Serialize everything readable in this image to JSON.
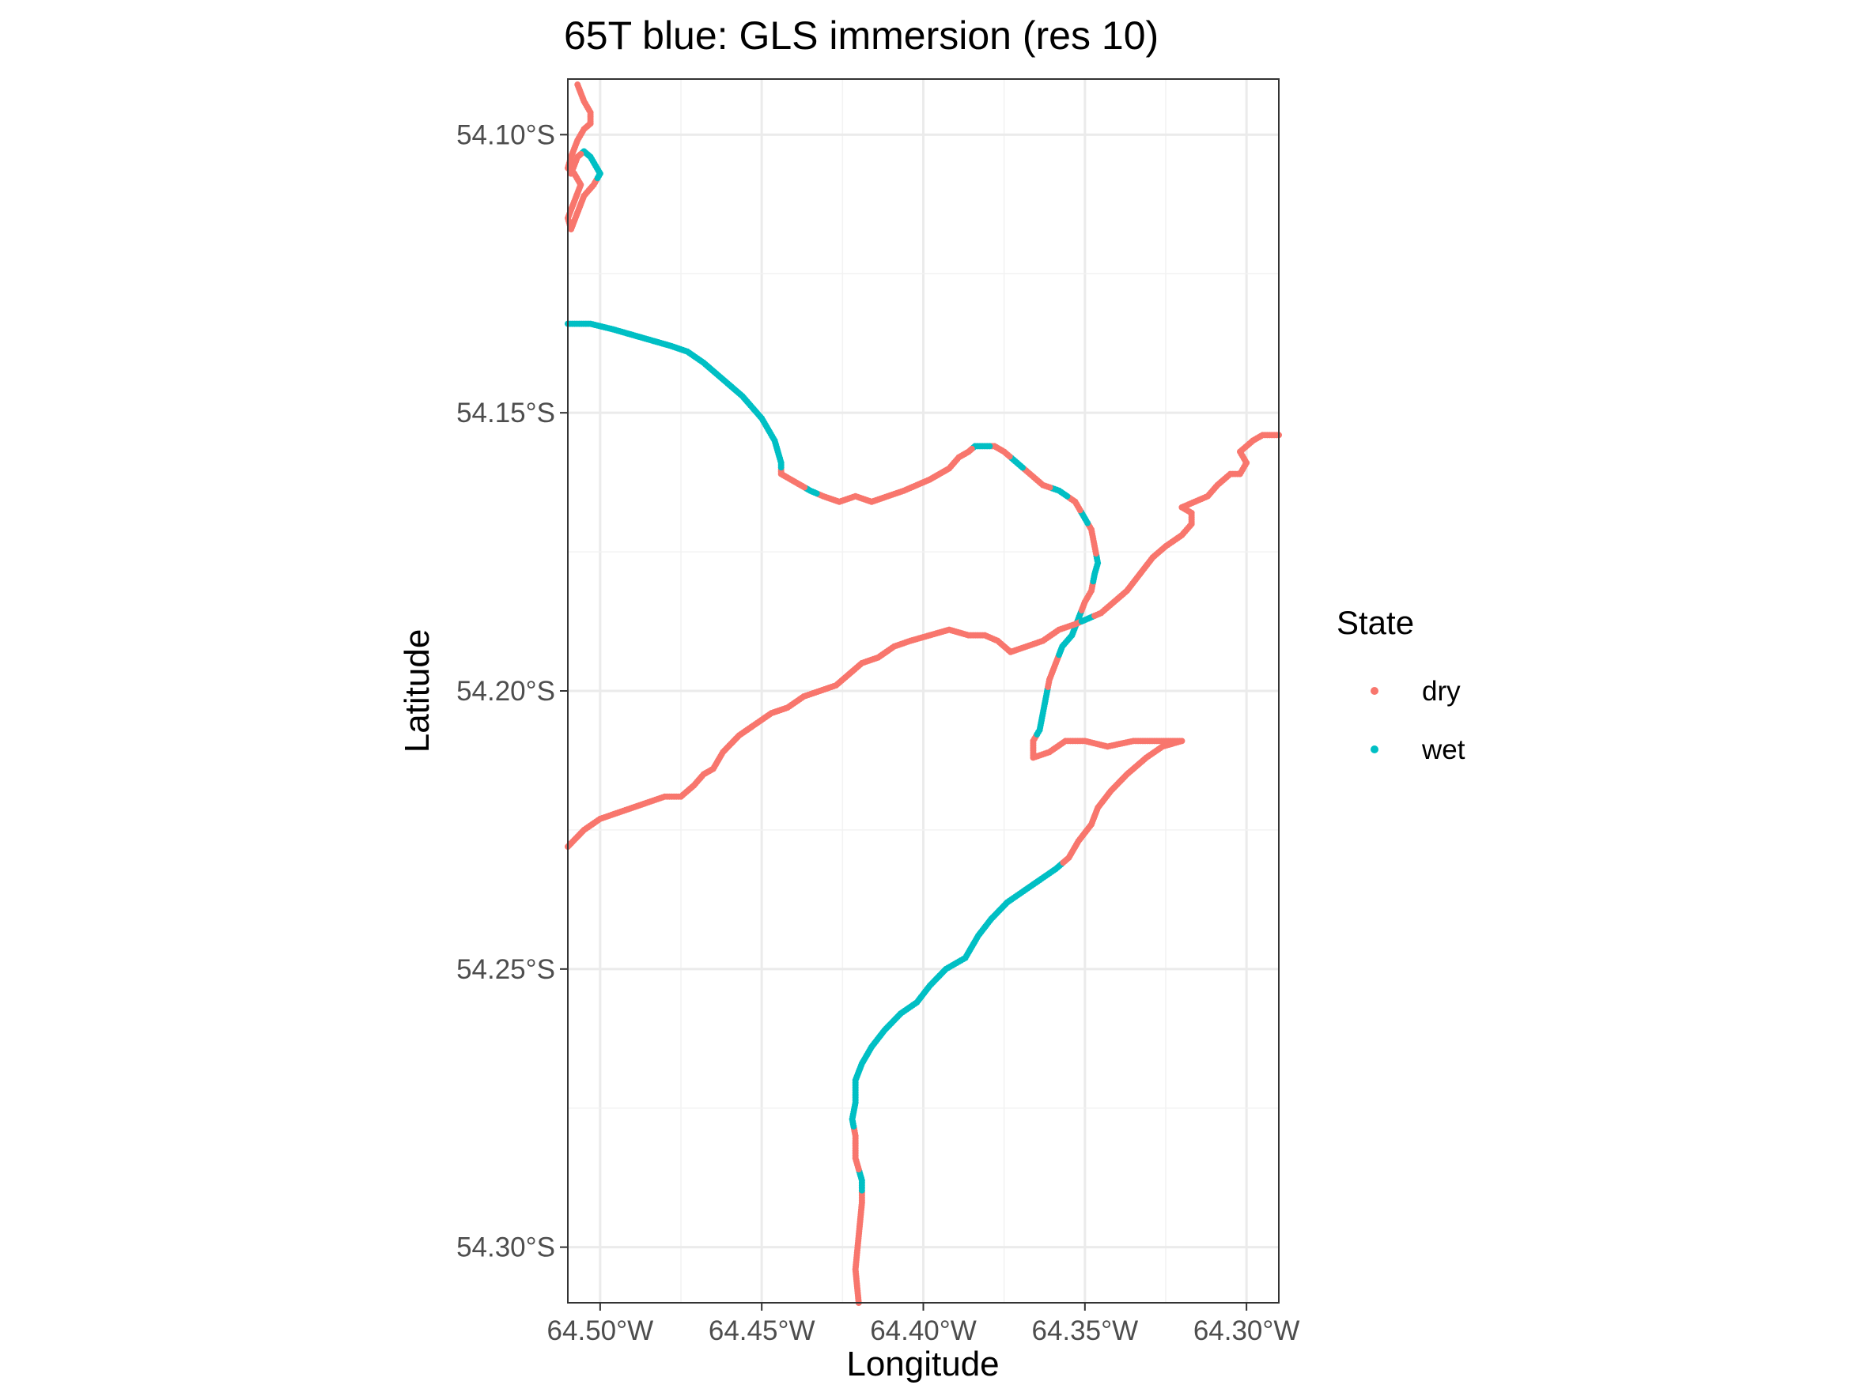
{
  "chart_data": {
    "type": "scatter",
    "title": "65T blue: GLS immersion (res 10)",
    "xlabel": "Longitude",
    "ylabel": "Latitude",
    "x_ticks": [
      -64.5,
      -64.45,
      -64.4,
      -64.35,
      -64.3
    ],
    "x_tick_labels": [
      "64.50°W",
      "64.45°W",
      "64.40°W",
      "64.35°W",
      "64.30°W"
    ],
    "y_ticks": [
      -54.1,
      -54.15,
      -54.2,
      -54.25,
      -54.3
    ],
    "y_tick_labels": [
      "54.10°S",
      "54.15°S",
      "54.20°S",
      "54.25°S",
      "54.30°S"
    ],
    "xlim": [
      -64.51,
      -64.29
    ],
    "ylim": [
      -54.31,
      -54.09
    ],
    "grid": true,
    "legend": {
      "title": "State",
      "position": "right",
      "entries": [
        {
          "label": "dry",
          "color": "#F8766D"
        },
        {
          "label": "wet",
          "color": "#00BFC4"
        }
      ]
    },
    "track": [
      [
        -64.42,
        -54.31,
        "dry"
      ],
      [
        -64.421,
        -54.304,
        "dry"
      ],
      [
        -64.42,
        -54.298,
        "dry"
      ],
      [
        -64.419,
        -54.292,
        "dry"
      ],
      [
        -64.419,
        -54.288,
        "wet"
      ],
      [
        -64.421,
        -54.284,
        "dry"
      ],
      [
        -64.421,
        -54.28,
        "dry"
      ],
      [
        -64.422,
        -54.277,
        "wet"
      ],
      [
        -64.421,
        -54.274,
        "wet"
      ],
      [
        -64.421,
        -54.27,
        "wet"
      ],
      [
        -64.419,
        -54.267,
        "wet"
      ],
      [
        -64.416,
        -54.264,
        "wet"
      ],
      [
        -64.412,
        -54.261,
        "wet"
      ],
      [
        -64.407,
        -54.258,
        "wet"
      ],
      [
        -64.402,
        -54.256,
        "wet"
      ],
      [
        -64.398,
        -54.253,
        "wet"
      ],
      [
        -64.393,
        -54.25,
        "wet"
      ],
      [
        -64.387,
        -54.248,
        "wet"
      ],
      [
        -64.383,
        -54.244,
        "wet"
      ],
      [
        -64.379,
        -54.241,
        "wet"
      ],
      [
        -64.374,
        -54.238,
        "wet"
      ],
      [
        -64.369,
        -54.236,
        "wet"
      ],
      [
        -64.364,
        -54.234,
        "wet"
      ],
      [
        -64.359,
        -54.232,
        "wet"
      ],
      [
        -64.355,
        -54.23,
        "dry"
      ],
      [
        -64.352,
        -54.227,
        "dry"
      ],
      [
        -64.348,
        -54.224,
        "dry"
      ],
      [
        -64.346,
        -54.221,
        "dry"
      ],
      [
        -64.342,
        -54.218,
        "dry"
      ],
      [
        -64.337,
        -54.215,
        "dry"
      ],
      [
        -64.331,
        -54.212,
        "dry"
      ],
      [
        -64.326,
        -54.21,
        "dry"
      ],
      [
        -64.32,
        -54.209,
        "dry"
      ],
      [
        -64.327,
        -54.209,
        "dry"
      ],
      [
        -64.335,
        -54.209,
        "dry"
      ],
      [
        -64.343,
        -54.21,
        "dry"
      ],
      [
        -64.35,
        -54.209,
        "dry"
      ],
      [
        -64.356,
        -54.209,
        "dry"
      ],
      [
        -64.361,
        -54.211,
        "dry"
      ],
      [
        -64.366,
        -54.212,
        "dry"
      ],
      [
        -64.366,
        -54.209,
        "dry"
      ],
      [
        -64.364,
        -54.207,
        "wet"
      ],
      [
        -64.363,
        -54.204,
        "wet"
      ],
      [
        -64.362,
        -54.201,
        "wet"
      ],
      [
        -64.361,
        -54.198,
        "dry"
      ],
      [
        -64.359,
        -54.195,
        "dry"
      ],
      [
        -64.357,
        -54.192,
        "wet"
      ],
      [
        -64.354,
        -54.19,
        "wet"
      ],
      [
        -64.352,
        -54.187,
        "wet"
      ],
      [
        -64.35,
        -54.184,
        "dry"
      ],
      [
        -64.348,
        -54.182,
        "dry"
      ],
      [
        -64.347,
        -54.179,
        "wet"
      ],
      [
        -64.346,
        -54.177,
        "wet"
      ],
      [
        -64.347,
        -54.174,
        "dry"
      ],
      [
        -64.348,
        -54.171,
        "dry"
      ],
      [
        -64.35,
        -54.169,
        "wet"
      ],
      [
        -64.353,
        -54.166,
        "dry"
      ],
      [
        -64.358,
        -54.164,
        "wet"
      ],
      [
        -64.363,
        -54.163,
        "dry"
      ],
      [
        -64.367,
        -54.161,
        "dry"
      ],
      [
        -64.371,
        -54.159,
        "wet"
      ],
      [
        -64.375,
        -54.157,
        "dry"
      ],
      [
        -64.378,
        -54.156,
        "dry"
      ],
      [
        -64.381,
        -54.156,
        "wet"
      ],
      [
        -64.384,
        -54.156,
        "wet"
      ],
      [
        -64.386,
        -54.157,
        "dry"
      ],
      [
        -64.389,
        -54.158,
        "dry"
      ],
      [
        -64.392,
        -54.16,
        "dry"
      ],
      [
        -64.395,
        -54.161,
        "dry"
      ],
      [
        -64.398,
        -54.162,
        "dry"
      ],
      [
        -64.402,
        -54.163,
        "dry"
      ],
      [
        -64.406,
        -54.164,
        "dry"
      ],
      [
        -64.411,
        -54.165,
        "dry"
      ],
      [
        -64.416,
        -54.166,
        "dry"
      ],
      [
        -64.421,
        -54.165,
        "dry"
      ],
      [
        -64.426,
        -54.166,
        "dry"
      ],
      [
        -64.431,
        -54.165,
        "dry"
      ],
      [
        -64.435,
        -54.164,
        "wet"
      ],
      [
        -64.438,
        -54.163,
        "dry"
      ],
      [
        -64.441,
        -54.162,
        "dry"
      ],
      [
        -64.444,
        -54.161,
        "dry"
      ],
      [
        -64.444,
        -54.159,
        "wet"
      ],
      [
        -64.445,
        -54.157,
        "wet"
      ],
      [
        -64.446,
        -54.155,
        "wet"
      ],
      [
        -64.448,
        -54.153,
        "wet"
      ],
      [
        -64.45,
        -54.151,
        "wet"
      ],
      [
        -64.453,
        -54.149,
        "wet"
      ],
      [
        -64.456,
        -54.147,
        "wet"
      ],
      [
        -64.46,
        -54.145,
        "wet"
      ],
      [
        -64.464,
        -54.143,
        "wet"
      ],
      [
        -64.468,
        -54.141,
        "wet"
      ],
      [
        -64.473,
        -54.139,
        "wet"
      ],
      [
        -64.478,
        -54.138,
        "wet"
      ],
      [
        -64.484,
        -54.137,
        "wet"
      ],
      [
        -64.49,
        -54.136,
        "wet"
      ],
      [
        -64.496,
        -54.135,
        "wet"
      ],
      [
        -64.503,
        -54.134,
        "wet"
      ],
      [
        -64.51,
        -54.134,
        "wet"
      ]
    ],
    "track_south_branch": [
      [
        -64.51,
        -54.228,
        "dry"
      ],
      [
        -64.505,
        -54.225,
        "dry"
      ],
      [
        -64.5,
        -54.223,
        "dry"
      ],
      [
        -64.495,
        -54.222,
        "dry"
      ],
      [
        -64.49,
        -54.221,
        "dry"
      ],
      [
        -64.485,
        -54.22,
        "dry"
      ],
      [
        -64.48,
        -54.219,
        "dry"
      ],
      [
        -64.475,
        -54.219,
        "dry"
      ],
      [
        -64.471,
        -54.217,
        "dry"
      ],
      [
        -64.468,
        -54.215,
        "dry"
      ],
      [
        -64.465,
        -54.214,
        "dry"
      ],
      [
        -64.462,
        -54.211,
        "dry"
      ],
      [
        -64.457,
        -54.208,
        "dry"
      ],
      [
        -64.452,
        -54.206,
        "dry"
      ],
      [
        -64.447,
        -54.204,
        "dry"
      ],
      [
        -64.442,
        -54.203,
        "dry"
      ],
      [
        -64.437,
        -54.201,
        "dry"
      ],
      [
        -64.432,
        -54.2,
        "dry"
      ],
      [
        -64.427,
        -54.199,
        "dry"
      ],
      [
        -64.423,
        -54.197,
        "dry"
      ],
      [
        -64.419,
        -54.195,
        "dry"
      ],
      [
        -64.414,
        -54.194,
        "dry"
      ],
      [
        -64.409,
        -54.192,
        "dry"
      ],
      [
        -64.404,
        -54.191,
        "dry"
      ],
      [
        -64.398,
        -54.19,
        "dry"
      ],
      [
        -64.392,
        -54.189,
        "dry"
      ],
      [
        -64.386,
        -54.19,
        "dry"
      ],
      [
        -64.381,
        -54.19,
        "dry"
      ],
      [
        -64.377,
        -54.191,
        "dry"
      ],
      [
        -64.373,
        -54.193,
        "dry"
      ],
      [
        -64.368,
        -54.192,
        "dry"
      ],
      [
        -64.363,
        -54.191,
        "dry"
      ],
      [
        -64.358,
        -54.189,
        "dry"
      ],
      [
        -64.353,
        -54.188,
        "dry"
      ],
      [
        -64.349,
        -54.187,
        "wet"
      ],
      [
        -64.345,
        -54.186,
        "dry"
      ],
      [
        -64.341,
        -54.184,
        "dry"
      ],
      [
        -64.337,
        -54.182,
        "dry"
      ],
      [
        -64.333,
        -54.179,
        "dry"
      ],
      [
        -64.329,
        -54.176,
        "dry"
      ],
      [
        -64.325,
        -54.174,
        "dry"
      ],
      [
        -64.32,
        -54.172,
        "dry"
      ],
      [
        -64.317,
        -54.17,
        "dry"
      ],
      [
        -64.317,
        -54.168,
        "dry"
      ],
      [
        -64.32,
        -54.167,
        "dry"
      ],
      [
        -64.316,
        -54.166,
        "dry"
      ],
      [
        -64.312,
        -54.165,
        "dry"
      ],
      [
        -64.309,
        -54.163,
        "dry"
      ],
      [
        -64.305,
        -54.161,
        "dry"
      ],
      [
        -64.302,
        -54.161,
        "dry"
      ],
      [
        -64.3,
        -54.159,
        "dry"
      ],
      [
        -64.302,
        -54.157,
        "dry"
      ],
      [
        -64.298,
        -54.155,
        "dry"
      ],
      [
        -64.295,
        -54.154,
        "dry"
      ],
      [
        -64.29,
        -54.154,
        "dry"
      ]
    ],
    "track_north_fragment": [
      [
        -64.507,
        -54.091,
        "dry"
      ],
      [
        -64.505,
        -54.094,
        "dry"
      ],
      [
        -64.503,
        -54.096,
        "dry"
      ],
      [
        -64.503,
        -54.098,
        "dry"
      ],
      [
        -64.505,
        -54.099,
        "dry"
      ],
      [
        -64.507,
        -54.101,
        "dry"
      ],
      [
        -64.509,
        -54.104,
        "dry"
      ],
      [
        -64.51,
        -54.106,
        "dry"
      ],
      [
        -64.508,
        -54.107,
        "dry"
      ],
      [
        -64.506,
        -54.109,
        "dry"
      ],
      [
        -64.508,
        -54.112,
        "dry"
      ],
      [
        -64.51,
        -54.115,
        "dry"
      ],
      [
        -64.509,
        -54.117,
        "dry"
      ],
      [
        -64.507,
        -54.114,
        "dry"
      ],
      [
        -64.505,
        -54.111,
        "dry"
      ],
      [
        -64.502,
        -54.109,
        "dry"
      ],
      [
        -64.5,
        -54.107,
        "wet"
      ],
      [
        -64.501,
        -54.106,
        "wet"
      ],
      [
        -64.503,
        -54.104,
        "wet"
      ],
      [
        -64.505,
        -54.103,
        "wet"
      ],
      [
        -64.507,
        -54.104,
        "dry"
      ],
      [
        -64.509,
        -54.107,
        "dry"
      ]
    ]
  }
}
